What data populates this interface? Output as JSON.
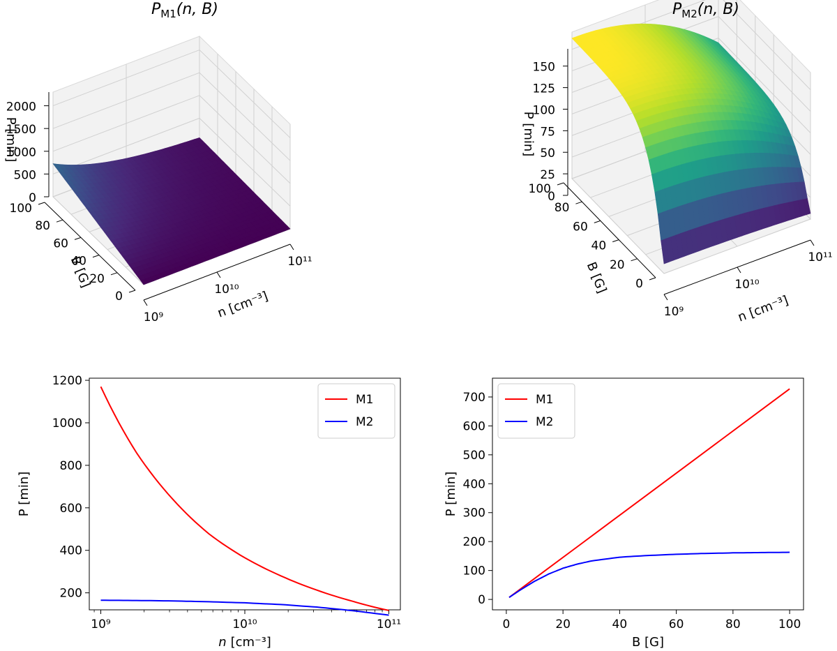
{
  "chart_data": [
    {
      "type": "surface3d",
      "title_main": "P",
      "title_sub": "M1",
      "title_args": "(n, B)",
      "xlabel": "n [cm⁻³]",
      "ylabel": "B [G]",
      "zlabel": "P [min]",
      "x_ticks": [
        "10⁹",
        "10¹⁰",
        "10¹¹"
      ],
      "y_ticks": [
        "0",
        "20",
        "40",
        "60",
        "80",
        "100"
      ],
      "z_ticks": [
        "0",
        "500",
        "1000",
        "1500",
        "2000"
      ],
      "zlim": [
        0,
        2300
      ],
      "colormap": "viridis"
    },
    {
      "type": "surface3d",
      "title_main": "P",
      "title_sub": "M2",
      "title_args": "(n, B)",
      "xlabel": "n [cm⁻³]",
      "ylabel": "B [G]",
      "zlabel": "P [min]",
      "x_ticks": [
        "10⁹",
        "10¹⁰",
        "10¹¹"
      ],
      "y_ticks": [
        "0",
        "20",
        "40",
        "60",
        "80",
        "100"
      ],
      "z_ticks": [
        "0",
        "25",
        "50",
        "75",
        "100",
        "125",
        "150"
      ],
      "zlim": [
        0,
        170
      ],
      "colormap": "viridis"
    },
    {
      "type": "line",
      "xscale": "log",
      "xlabel_main": "n",
      "xlabel_unit": "[cm⁻³]",
      "ylabel": "P [min]",
      "xlim_log10": [
        8.92,
        11.08
      ],
      "ylim": [
        120,
        1210
      ],
      "x_ticks": [
        "10⁹",
        "10¹⁰",
        "10¹¹"
      ],
      "y_ticks": [
        "200",
        "400",
        "600",
        "800",
        "1000",
        "1200"
      ],
      "legend_position": "top-right",
      "series": [
        {
          "name": "M1",
          "color": "#ff0000",
          "log10_x": [
            9.0,
            9.25,
            9.5,
            9.75,
            10.0,
            10.25,
            10.5,
            10.75,
            11.0
          ],
          "y": [
            1170,
            857,
            640,
            478,
            365,
            280,
            213,
            160,
            117
          ]
        },
        {
          "name": "M2",
          "color": "#0000ff",
          "log10_x": [
            9.0,
            9.25,
            9.5,
            9.75,
            10.0,
            10.25,
            10.5,
            10.75,
            11.0
          ],
          "y": [
            165,
            164,
            162,
            158,
            153,
            145,
            133,
            116,
            95
          ]
        }
      ]
    },
    {
      "type": "line",
      "xscale": "linear",
      "xlabel": "B [G]",
      "ylabel": "P [min]",
      "xlim": [
        -4.9,
        104.9
      ],
      "ylim": [
        -36,
        765
      ],
      "x_ticks": [
        "0",
        "20",
        "40",
        "60",
        "80",
        "100"
      ],
      "y_ticks": [
        "0",
        "100",
        "200",
        "300",
        "400",
        "500",
        "600",
        "700"
      ],
      "legend_position": "top-left",
      "series": [
        {
          "name": "M1",
          "color": "#ff0000",
          "x": [
            1,
            100
          ],
          "y": [
            7,
            728
          ]
        },
        {
          "name": "M2",
          "color": "#0000ff",
          "x": [
            1,
            5,
            10,
            15,
            20,
            25,
            30,
            40,
            50,
            60,
            70,
            80,
            90,
            100
          ],
          "y": [
            7,
            33,
            63,
            88,
            108,
            122,
            133,
            146,
            152,
            156,
            159,
            161,
            162,
            163
          ]
        }
      ]
    }
  ]
}
